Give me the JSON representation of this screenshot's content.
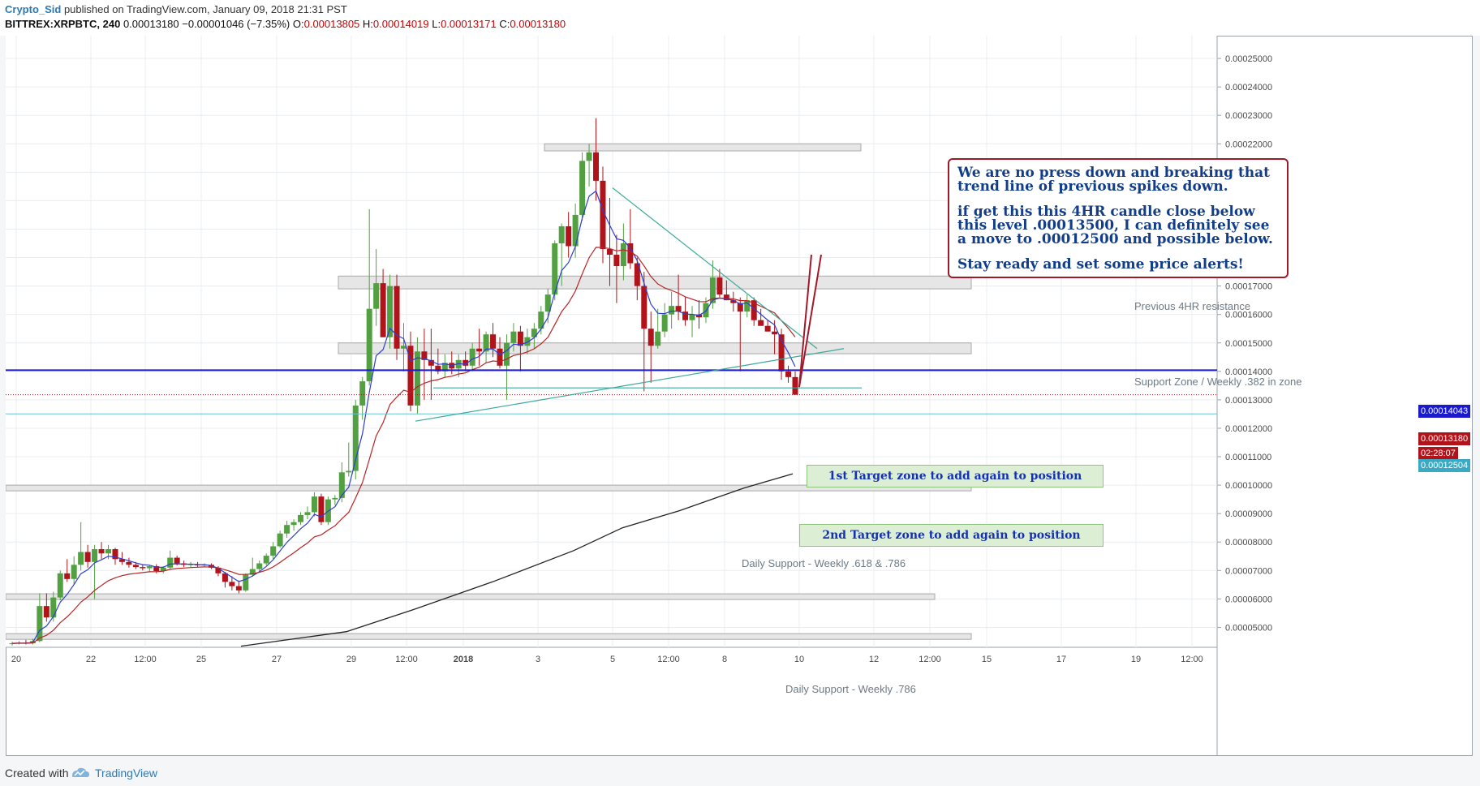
{
  "header": {
    "author": "Crypto_Sid",
    "published": " published on TradingView.com, January 09, 2018 21:31 PST",
    "symbol": "BITTREX:XRPBTC, 240",
    "last": "0.00013180",
    "change": "−0.00001046 (−7.35%)",
    "o_label": "O:",
    "o_value": "0.00013805",
    "h_label": "H:",
    "h_value": "0.00014019",
    "l_label": "L:",
    "l_value": "0.00013171",
    "c_label": "C:",
    "c_value": "0.00013180"
  },
  "footer": {
    "created_with": "Created with",
    "brand": "TradingView"
  },
  "callout": {
    "p1": "We are no press down and breaking that trend line of previous spikes down.",
    "p2": "if get this this 4HR candle close below this level .00013500, I can definitely see a move to .00012500 and possible below.",
    "p3": "Stay ready and set some price alerts!"
  },
  "annotations": {
    "resistance": "Previous 4HR resistance",
    "support_zone": "Support Zone /  Weekly .382 in zone",
    "daily_support_1": "Daily Support - Weekly .618 & .786",
    "daily_support_2": "Daily Support - Weekly .786",
    "target1": "1st Target zone to add again to position",
    "target2": "2nd Target zone to add again to position"
  },
  "price_tags": {
    "blue_line": "0.00014043",
    "last_price": "0.00013180",
    "countdown": "02:28:07",
    "target_line": "0.00012504"
  },
  "colors": {
    "up_candle": "#53a043",
    "down_candle": "#b0141a",
    "ema_fast": "#2b3fd0",
    "ema_slow": "#b82424",
    "sma_long": "#222222",
    "trendline": "#3aa99a",
    "horizontal_line": "#1a1acc",
    "callout_border": "#a0192a",
    "callout_text": "#123d8a",
    "target_fill": "#dcefd4"
  },
  "chart_data": {
    "type": "candlestick",
    "y_axis_ticks": [
      "0.00025000",
      "0.00024000",
      "0.00023000",
      "0.00022000",
      "0.00021000",
      "0.00020000",
      "0.00019000",
      "0.00018000",
      "0.00017000",
      "0.00016000",
      "0.00015000",
      "0.00014000",
      "0.00013000",
      "0.00012000",
      "0.00011000",
      "0.00010000",
      "0.00009000",
      "0.00008000",
      "0.00007000",
      "0.00006000",
      "0.00005000"
    ],
    "x_axis_ticks": [
      "20",
      "22",
      "12:00",
      "25",
      "27",
      "29",
      "12:00",
      "2018",
      "3",
      "5",
      "12:00",
      "8",
      "10",
      "12",
      "12:00",
      "15",
      "17",
      "19",
      "12:00"
    ],
    "ylim": [
      4.3e-05,
      0.000258
    ],
    "key_levels": {
      "blue_line": 0.00014043,
      "last_price": 0.0001318,
      "target_line": 0.00012504,
      "alert_level": 0.000135,
      "target_move": 0.000125
    },
    "zones": [
      {
        "name": "previous-4hr-resistance",
        "y_top": 0.0001735,
        "y_bottom": 0.000169
      },
      {
        "name": "support-zone-weekly-382",
        "y_top": 0.00015,
        "y_bottom": 0.0001462
      },
      {
        "name": "top-resistance",
        "y_top": 0.00022,
        "y_bottom": 0.0002175
      },
      {
        "name": "daily-support-618-786",
        "y_top": 0.0001,
        "y_bottom": 9.8e-05
      },
      {
        "name": "daily-support-786",
        "y_top": 6.18e-05,
        "y_bottom": 5.98e-05
      },
      {
        "name": "bottom-zone",
        "y_top": 4.78e-05,
        "y_bottom": 4.58e-05
      },
      {
        "name": "target-zone-1",
        "y_top": 0.0001255,
        "y_bottom": 0.000119
      },
      {
        "name": "target-zone-2",
        "y_top": 0.0001065,
        "y_bottom": 0.0001
      }
    ],
    "candles": [
      [
        4.42e-05,
        4.5e-05,
        4.36e-05,
        4.44e-05
      ],
      [
        4.44e-05,
        4.52e-05,
        4.4e-05,
        4.46e-05
      ],
      [
        4.46e-05,
        4.56e-05,
        4.4e-05,
        4.44e-05
      ],
      [
        4.44e-05,
        4.6e-05,
        4.4e-05,
        4.52e-05
      ],
      [
        4.52e-05,
        6.2e-05,
        4.48e-05,
        5.75e-05
      ],
      [
        5.75e-05,
        6.2e-05,
        5.2e-05,
        5.35e-05
      ],
      [
        5.35e-05,
        6.25e-05,
        5.2e-05,
        6.05e-05
      ],
      [
        6.05e-05,
        7e-05,
        5.95e-05,
        6.9e-05
      ],
      [
        6.9e-05,
        7.4e-05,
        6.6e-05,
        6.7e-05
      ],
      [
        6.7e-05,
        7.5e-05,
        6.5e-05,
        7.2e-05
      ],
      [
        7.2e-05,
        8.7e-05,
        7e-05,
        7.65e-05
      ],
      [
        7.65e-05,
        7.9e-05,
        7.1e-05,
        7.3e-05
      ],
      [
        7.3e-05,
        7.9e-05,
        6e-05,
        7.75e-05
      ],
      [
        7.75e-05,
        8e-05,
        7.4e-05,
        7.6e-05
      ],
      [
        7.6e-05,
        7.9e-05,
        7.4e-05,
        7.75e-05
      ],
      [
        7.75e-05,
        7.8e-05,
        7.2e-05,
        7.4e-05
      ],
      [
        7.4e-05,
        7.65e-05,
        7.2e-05,
        7.3e-05
      ],
      [
        7.3e-05,
        7.45e-05,
        7.1e-05,
        7.2e-05
      ],
      [
        7.2e-05,
        7.3e-05,
        7.05e-05,
        7.12e-05
      ],
      [
        7.12e-05,
        7.22e-05,
        7e-05,
        7.08e-05
      ],
      [
        7.08e-05,
        7.2e-05,
        6.96e-05,
        7.15e-05
      ],
      [
        7.15e-05,
        7.22e-05,
        6.9e-05,
        6.98e-05
      ],
      [
        6.98e-05,
        7.15e-05,
        6.9e-05,
        7.1e-05
      ],
      [
        7.1e-05,
        7.7e-05,
        7.05e-05,
        7.45e-05
      ],
      [
        7.45e-05,
        7.52e-05,
        7.18e-05,
        7.25e-05
      ],
      [
        7.25e-05,
        7.35e-05,
        7.12e-05,
        7.2e-05
      ],
      [
        7.2e-05,
        7.3e-05,
        7.12e-05,
        7.22e-05
      ],
      [
        7.22e-05,
        7.3e-05,
        7.12e-05,
        7.18e-05
      ],
      [
        7.18e-05,
        7.25e-05,
        7.12e-05,
        7.2e-05
      ],
      [
        7.2e-05,
        7.25e-05,
        7.05e-05,
        7.1e-05
      ],
      [
        7.1e-05,
        7.15e-05,
        6.8e-05,
        6.9e-05
      ],
      [
        6.9e-05,
        6.95e-05,
        6.4e-05,
        6.6e-05
      ],
      [
        6.6e-05,
        6.8e-05,
        6.3e-05,
        6.45e-05
      ],
      [
        6.45e-05,
        6.65e-05,
        6.2e-05,
        6.3e-05
      ],
      [
        6.3e-05,
        6.9e-05,
        6.25e-05,
        6.85e-05
      ],
      [
        6.85e-05,
        7.45e-05,
        6.78e-05,
        7.05e-05
      ],
      [
        7.05e-05,
        7.35e-05,
        6.95e-05,
        7.25e-05
      ],
      [
        7.25e-05,
        7.6e-05,
        7.18e-05,
        7.52e-05
      ],
      [
        7.52e-05,
        8e-05,
        7.4e-05,
        7.85e-05
      ],
      [
        7.85e-05,
        8.4e-05,
        7.8e-05,
        8.3e-05
      ],
      [
        8.3e-05,
        8.75e-05,
        8.15e-05,
        8.6e-05
      ],
      [
        8.6e-05,
        8.8e-05,
        8.4e-05,
        8.7e-05
      ],
      [
        8.7e-05,
        9.05e-05,
        8.6e-05,
        8.95e-05
      ],
      [
        8.95e-05,
        9.25e-05,
        8.8e-05,
        9.05e-05
      ],
      [
        9.05e-05,
        9.75e-05,
        8.9e-05,
        9.6e-05
      ],
      [
        9.6e-05,
        9.7e-05,
        8.6e-05,
        8.7e-05
      ],
      [
        8.7e-05,
        9.6e-05,
        8.6e-05,
        9.5e-05
      ],
      [
        9.5e-05,
        9.65e-05,
        9.3e-05,
        9.55e-05
      ],
      [
        9.55e-05,
        0.000108,
        9.4e-05,
        0.0001045
      ],
      [
        0.0001045,
        0.000115,
        0.000103,
        0.000105
      ],
      [
        0.000105,
        0.00013,
        0.000102,
        0.000128
      ],
      [
        0.000128,
        0.000138,
        0.000123,
        0.0001365
      ],
      [
        0.0001365,
        0.000197,
        0.000135,
        0.000162
      ],
      [
        0.000162,
        0.000183,
        0.000156,
        0.000171
      ],
      [
        0.000171,
        0.000176,
        0.000152,
        0.000152
      ],
      [
        0.000152,
        0.000174,
        0.000148,
        0.00017
      ],
      [
        0.00017,
        0.000174,
        0.000144,
        0.000148
      ],
      [
        0.000148,
        0.000157,
        0.00014,
        0.000149
      ],
      [
        0.000149,
        0.000154,
        0.000126,
        0.000128
      ],
      [
        0.000128,
        0.000152,
        0.000125,
        0.000147
      ],
      [
        0.000147,
        0.000155,
        0.00013,
        0.000144
      ],
      [
        0.000144,
        0.000155,
        0.00013,
        0.000142
      ],
      [
        0.000142,
        0.000148,
        0.000139,
        0.00014
      ],
      [
        0.00014,
        0.000146,
        0.000138,
        0.000143
      ],
      [
        0.000143,
        0.000147,
        0.000139,
        0.000141
      ],
      [
        0.000141,
        0.000146,
        0.000138,
        0.000144
      ],
      [
        0.000144,
        0.000147,
        0.00014,
        0.000142
      ],
      [
        0.000142,
        0.00015,
        0.00014,
        0.000148
      ],
      [
        0.000148,
        0.000155,
        0.000142,
        0.000147
      ],
      [
        0.000147,
        0.000154,
        0.000143,
        0.000153
      ],
      [
        0.000153,
        0.000157,
        0.000145,
        0.000148
      ],
      [
        0.000148,
        0.000152,
        0.000141,
        0.000142
      ],
      [
        0.000142,
        0.000153,
        0.00013,
        0.00015
      ],
      [
        0.00015,
        0.000157,
        0.000147,
        0.000154
      ],
      [
        0.000154,
        0.000156,
        0.00014,
        0.000149
      ],
      [
        0.000149,
        0.000155,
        0.000146,
        0.000152
      ],
      [
        0.000152,
        0.000157,
        0.000148,
        0.000155
      ],
      [
        0.000155,
        0.000163,
        0.000153,
        0.000161
      ],
      [
        0.000161,
        0.000169,
        0.000157,
        0.000167
      ],
      [
        0.000167,
        0.000186,
        0.000165,
        0.000185
      ],
      [
        0.000185,
        0.000192,
        0.00017,
        0.000191
      ],
      [
        0.000191,
        0.000196,
        0.00018,
        0.000184
      ],
      [
        0.000184,
        0.000199,
        0.00018,
        0.000195
      ],
      [
        0.000195,
        0.000217,
        0.000193,
        0.000214
      ],
      [
        0.000214,
        0.00022,
        0.000205,
        0.000217
      ],
      [
        0.000217,
        0.000229,
        0.0002,
        0.000207
      ],
      [
        0.000207,
        0.000212,
        0.000178,
        0.000183
      ],
      [
        0.000183,
        0.000201,
        0.00017,
        0.000181
      ],
      [
        0.000181,
        0.000188,
        0.000164,
        0.000177
      ],
      [
        0.000177,
        0.000192,
        0.000172,
        0.000185
      ],
      [
        0.000185,
        0.000197,
        0.000176,
        0.000178
      ],
      [
        0.000178,
        0.00018,
        0.000165,
        0.00017
      ],
      [
        0.00017,
        0.000175,
        0.000133,
        0.000155
      ],
      [
        0.000155,
        0.000161,
        0.000136,
        0.000149
      ],
      [
        0.000149,
        0.000162,
        0.000148,
        0.000154
      ],
      [
        0.000154,
        0.000164,
        0.000152,
        0.00016
      ],
      [
        0.00016,
        0.000168,
        0.000155,
        0.000163
      ],
      [
        0.000163,
        0.000174,
        0.000158,
        0.000161
      ],
      [
        0.000161,
        0.000166,
        0.000156,
        0.000158
      ],
      [
        0.000158,
        0.000163,
        0.000152,
        0.00016
      ],
      [
        0.00016,
        0.000165,
        0.000155,
        0.000159
      ],
      [
        0.000159,
        0.000166,
        0.000157,
        0.000164
      ],
      [
        0.000164,
        0.000179,
        0.000162,
        0.000173
      ],
      [
        0.000173,
        0.000176,
        0.000166,
        0.000167
      ],
      [
        0.000167,
        0.000172,
        0.000165,
        0.000165
      ],
      [
        0.000165,
        0.000168,
        0.000161,
        0.000164
      ],
      [
        0.000164,
        0.000166,
        0.00014,
        0.000161
      ],
      [
        0.000161,
        0.000167,
        0.000159,
        0.000165
      ],
      [
        0.000165,
        0.000166,
        0.000156,
        0.000158
      ],
      [
        0.000158,
        0.000162,
        0.000156,
        0.000156
      ],
      [
        0.000156,
        0.000158,
        0.000154,
        0.000154
      ],
      [
        0.000154,
        0.000158,
        0.000146,
        0.000153
      ],
      [
        0.000153,
        0.000155,
        0.000137,
        0.00014
      ],
      [
        0.00014,
        0.000142,
        0.000136,
        0.000138
      ],
      [
        0.000138,
        0.00014,
        0.0001317,
        0.0001318
      ]
    ]
  }
}
